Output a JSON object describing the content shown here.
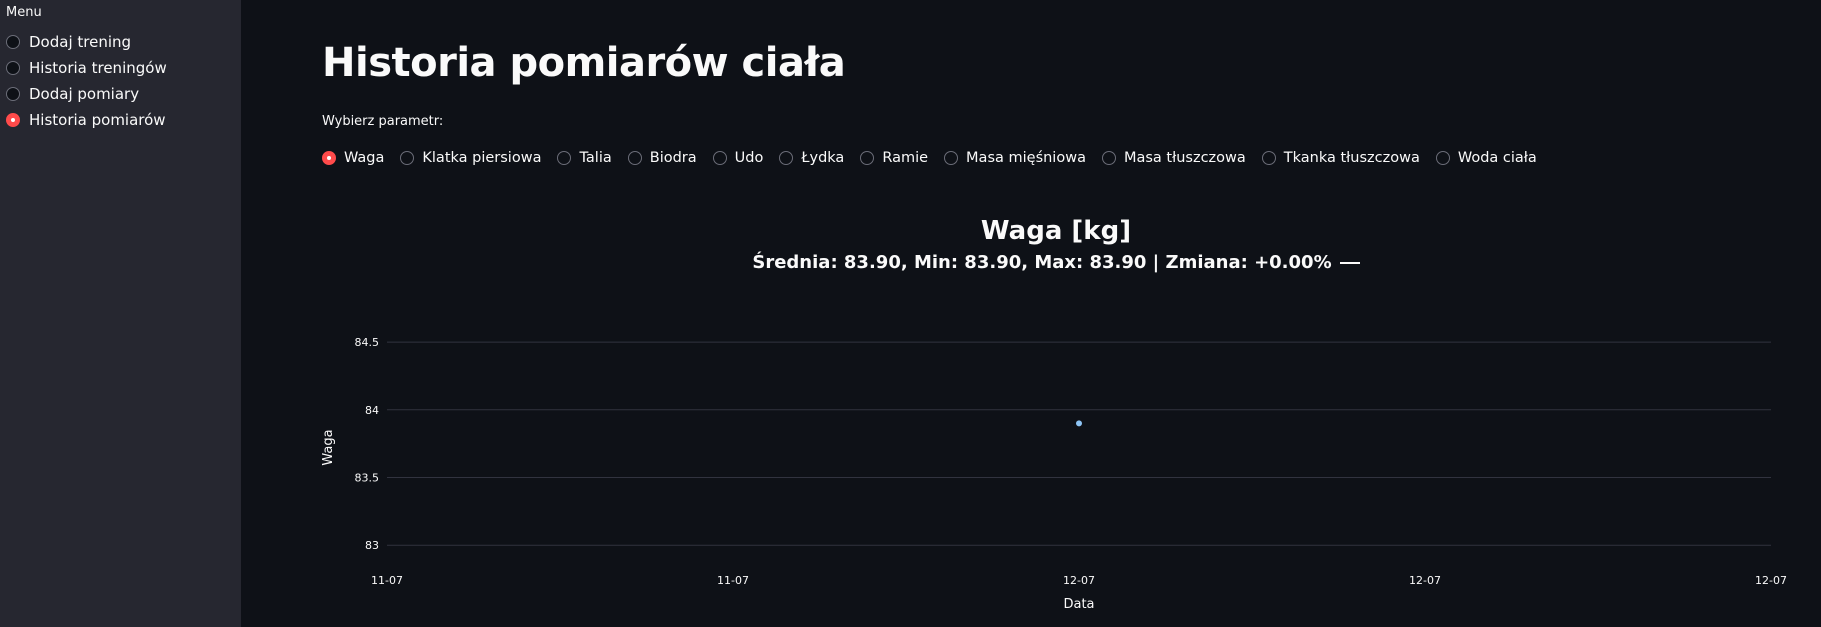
{
  "sidebar": {
    "menu_label": "Menu",
    "items": [
      {
        "label": "Dodaj trening",
        "selected": false
      },
      {
        "label": "Historia treningów",
        "selected": false
      },
      {
        "label": "Dodaj pomiary",
        "selected": false
      },
      {
        "label": "Historia pomiarów",
        "selected": true
      }
    ]
  },
  "main": {
    "title": "Historia pomiarów ciała",
    "param_label": "Wybierz parametr:",
    "params": [
      {
        "label": "Waga",
        "selected": true
      },
      {
        "label": "Klatka piersiowa",
        "selected": false
      },
      {
        "label": "Talia",
        "selected": false
      },
      {
        "label": "Biodra",
        "selected": false
      },
      {
        "label": "Udo",
        "selected": false
      },
      {
        "label": "Łydka",
        "selected": false
      },
      {
        "label": "Ramie",
        "selected": false
      },
      {
        "label": "Masa mięśniowa",
        "selected": false
      },
      {
        "label": "Masa tłuszczowa",
        "selected": false
      },
      {
        "label": "Tkanka tłuszczowa",
        "selected": false
      },
      {
        "label": "Woda ciała",
        "selected": false
      }
    ]
  },
  "chart_data": {
    "type": "scatter",
    "title": "Waga [kg]",
    "subtitle": "Średnia: 83.90, Min: 83.90, Max: 83.90 | Zmiana: +0.00%",
    "xlabel": "Data",
    "ylabel": "Waga",
    "x_ticks": [
      "11-07",
      "11-07",
      "12-07",
      "12-07",
      "12-07"
    ],
    "y_ticks": [
      83,
      83.5,
      84,
      84.5
    ],
    "y_tick_labels": [
      "83",
      "83.5",
      "84",
      "84.5"
    ],
    "ylim": [
      82.95,
      84.7
    ],
    "x_range_ticks": [
      0,
      4
    ],
    "points": [
      {
        "x_tick_pos": 2,
        "y": 83.9
      }
    ],
    "grid": true,
    "colors": {
      "point": "#8ec5f5",
      "grid": "#31333f",
      "background": "#0e1117"
    }
  }
}
